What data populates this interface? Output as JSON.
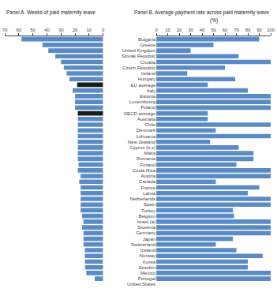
{
  "chart_data": [
    {
      "type": "bar",
      "orientation": "horizontal",
      "title": "Panel A. Weeks of paid maternity leave",
      "categories": [
        "Bulgaria",
        "Greece",
        "United Kingdom",
        "Slovak Republic",
        "Croatia",
        "Czech Republic",
        "Ireland",
        "Hungary",
        "EU average",
        "Italy",
        "Estonia",
        "Luxembourg",
        "Poland",
        "OECD average",
        "Australia",
        "Chile",
        "Denmark",
        "Lithuania",
        "New Zealand",
        "Cyprus (b.c)",
        "Malta",
        "Romania",
        "Finland",
        "Costa Rica",
        "Austria",
        "Canada",
        "France",
        "Latvia",
        "Netherlands",
        "Spain",
        "Turkey",
        "Belgium",
        "Israel (a)",
        "Slovenia",
        "Germany",
        "Japan",
        "Switzerland",
        "Iceland",
        "Norway",
        "Korea",
        "Sweden",
        "Mexico",
        "Portugal",
        "United States"
      ],
      "values": [
        58.1,
        43.1,
        39.0,
        34.0,
        30.0,
        28.0,
        26.0,
        24.0,
        18.5,
        21.7,
        20.0,
        20.0,
        20.0,
        18.0,
        18.0,
        18.0,
        18.0,
        18.0,
        18.0,
        18.0,
        18.0,
        18.0,
        17.5,
        18.0,
        16.0,
        17.0,
        16.0,
        16.0,
        16.0,
        16.0,
        16.0,
        15.0,
        14.0,
        15.0,
        14.0,
        14.0,
        14.0,
        13.0,
        13.0,
        12.9,
        12.9,
        12.0,
        6.0,
        0.0
      ],
      "colors": [
        "#5b8bc5",
        "#5b8bc5",
        "#5b8bc5",
        "#5b8bc5",
        "#5b8bc5",
        "#5b8bc5",
        "#5b8bc5",
        "#5b8bc5",
        "#1a1a1a",
        "#5b8bc5",
        "#5b8bc5",
        "#5b8bc5",
        "#5b8bc5",
        "#1a1a1a",
        "#5b8bc5",
        "#5b8bc5",
        "#5b8bc5",
        "#5b8bc5",
        "#5b8bc5",
        "#5b8bc5",
        "#5b8bc5",
        "#5b8bc5",
        "#5b8bc5",
        "#5b8bc5",
        "#5b8bc5",
        "#5b8bc5",
        "#5b8bc5",
        "#5b8bc5",
        "#5b8bc5",
        "#5b8bc5",
        "#5b8bc5",
        "#5b8bc5",
        "#5b8bc5",
        "#5b8bc5",
        "#5b8bc5",
        "#5b8bc5",
        "#5b8bc5",
        "#5b8bc5",
        "#5b8bc5",
        "#5b8bc5",
        "#5b8bc5",
        "#5b8bc5",
        "#5b8bc5",
        "#5b8bc5"
      ],
      "xlim": [
        70,
        0
      ],
      "xticks": [
        70,
        60,
        50,
        40,
        30,
        20,
        10,
        0
      ],
      "grid": false,
      "tick_labels": "x"
    },
    {
      "type": "bar",
      "orientation": "horizontal",
      "title": "Panel B. Average payment rate across paid maternity leave",
      "subtitle": "(%)",
      "categories": [
        "Bulgaria",
        "Greece",
        "United Kingdom",
        "Slovak Republic",
        "Croatia",
        "Czech Republic",
        "Ireland",
        "Hungary",
        "EU average",
        "Italy",
        "Estonia",
        "Luxembourg",
        "Poland",
        "OECD average",
        "Australia",
        "Chile",
        "Denmark",
        "Lithuania",
        "New Zealand",
        "Cyprus (b.c)",
        "Malta",
        "Romania",
        "Finland",
        "Costa Rica",
        "Austria",
        "Canada",
        "France",
        "Latvia",
        "Netherlands",
        "Spain",
        "Turkey",
        "Belgium",
        "Israel (a)",
        "Slovenia",
        "Germany",
        "Japan",
        "Switzerland",
        "Iceland",
        "Norway",
        "Korea",
        "Sweden",
        "Mexico",
        "Portugal",
        "United States"
      ],
      "values": [
        90,
        50,
        30,
        72,
        100,
        60,
        27,
        69,
        45,
        80,
        100,
        100,
        100,
        45,
        45,
        100,
        52,
        100,
        47,
        72,
        85,
        85,
        70,
        100,
        100,
        52,
        90,
        80,
        100,
        100,
        67,
        68,
        100,
        100,
        100,
        67,
        52,
        70,
        93,
        80,
        80,
        100,
        100,
        0
      ],
      "color": "#5b8bc5",
      "xlim": [
        0,
        100
      ],
      "xticks": [
        0,
        10,
        20,
        30,
        40,
        50,
        60,
        70,
        80,
        90,
        100
      ],
      "grid": false
    }
  ]
}
